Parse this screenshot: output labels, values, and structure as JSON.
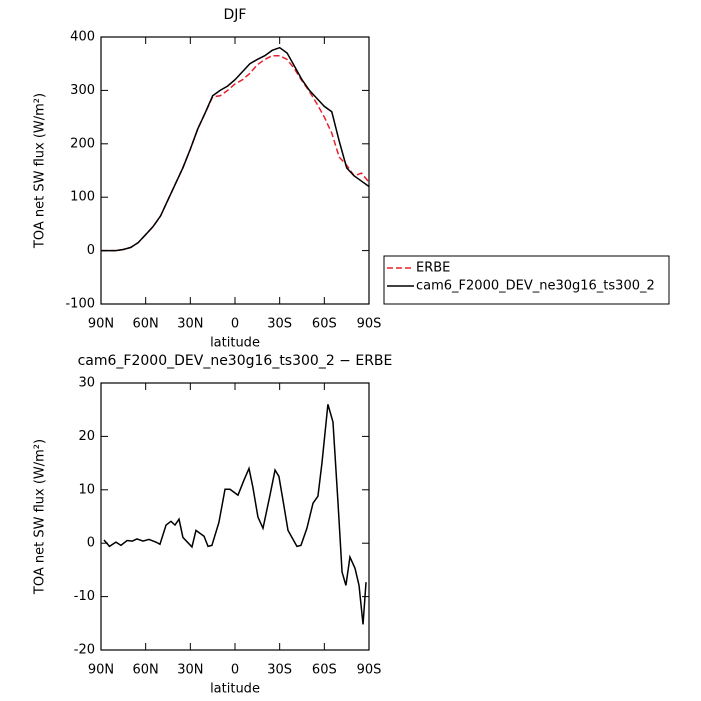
{
  "chart_data": [
    {
      "type": "line",
      "title": "DJF",
      "xlabel": "latitude",
      "ylabel": "TOA net SW flux (W/m²)",
      "x": [
        90,
        85,
        80,
        75,
        70,
        65,
        60,
        55,
        50,
        45,
        40,
        35,
        30,
        25,
        20,
        15,
        10,
        5,
        0,
        -5,
        -10,
        -15,
        -20,
        -25,
        -30,
        -35,
        -40,
        -45,
        -50,
        -55,
        -60,
        -65,
        -70,
        -75,
        -80,
        -85,
        -90
      ],
      "series": [
        {
          "name": "ERBE",
          "color": "#e8202a",
          "line_style": "dashed",
          "values": [
            0,
            0,
            0,
            2,
            6,
            15,
            30,
            45,
            65,
            95,
            125,
            155,
            190,
            228,
            258,
            288,
            290,
            300,
            312,
            320,
            332,
            348,
            358,
            365,
            365,
            358,
            340,
            318,
            298,
            275,
            250,
            220,
            175,
            160,
            140,
            145,
            128
          ]
        },
        {
          "name": "cam6_F2000_DEV_ne30g16_ts300_2",
          "color": "#000000",
          "line_style": "solid",
          "values": [
            0,
            0,
            0,
            2,
            6,
            15,
            30,
            45,
            65,
            95,
            125,
            155,
            190,
            228,
            258,
            290,
            300,
            308,
            320,
            335,
            350,
            358,
            365,
            375,
            380,
            370,
            345,
            320,
            300,
            285,
            270,
            260,
            205,
            155,
            140,
            130,
            120
          ]
        }
      ],
      "xlim": [
        90,
        -90
      ],
      "xticks": [
        {
          "value": 90,
          "label": "90N"
        },
        {
          "value": 60,
          "label": "60N"
        },
        {
          "value": 30,
          "label": "30N"
        },
        0,
        {
          "value": -30,
          "label": "30S"
        },
        {
          "value": -60,
          "label": "60S"
        },
        {
          "value": -90,
          "label": "90S"
        }
      ],
      "ylim": [
        -100,
        400
      ],
      "yticks": [
        -100,
        0,
        100,
        200,
        300,
        400
      ],
      "legend": "outside-right"
    },
    {
      "type": "line",
      "title": "cam6_F2000_DEV_ne30g16_ts300_2 − ERBE",
      "xlabel": "latitude",
      "ylabel": "TOA net SW flux (W/m²)",
      "x": [
        88,
        84.3,
        80,
        76.6,
        72.5,
        69,
        65.8,
        61.8,
        57.8,
        53,
        50.4,
        46.3,
        43,
        40.3,
        37.6,
        35,
        28.9,
        26.2,
        20.8,
        18.1,
        15.5,
        10.8,
        6.7,
        3.4,
        -2,
        -6,
        -9.4,
        -12,
        -15.4,
        -18.8,
        -23.5,
        -26.9,
        -29.5,
        -32.2,
        -35.6,
        -41.6,
        -44.3,
        -48.3,
        -52.4,
        -55.7,
        -58.4,
        -62.4,
        -65.8,
        -69.2,
        -71.9,
        -74.5,
        -77.2,
        -80.6,
        -83.3,
        -86,
        -88
      ],
      "values": [
        0.6,
        -0.6,
        0.2,
        -0.4,
        0.5,
        0.4,
        0.8,
        0.4,
        0.7,
        0.2,
        -0.2,
        3.4,
        4.1,
        3.4,
        4.5,
        1.1,
        -0.7,
        2.4,
        1.3,
        -0.6,
        -0.4,
        3.9,
        10.1,
        10.1,
        9,
        11.8,
        14,
        10.5,
        4.9,
        2.8,
        9,
        13.7,
        12.5,
        8.1,
        2.4,
        -0.6,
        -0.4,
        2.8,
        7.5,
        8.8,
        15,
        26,
        22.7,
        7.5,
        -5.4,
        -7.9,
        -2.6,
        -4.7,
        -7.9,
        -15.2,
        -7.3
      ],
      "color": "#000000",
      "xlim": [
        90,
        -90
      ],
      "xticks": [
        {
          "value": 90,
          "label": "90N"
        },
        {
          "value": 60,
          "label": "60N"
        },
        {
          "value": 30,
          "label": "30N"
        },
        0,
        {
          "value": -30,
          "label": "30S"
        },
        {
          "value": -60,
          "label": "60S"
        },
        {
          "value": -90,
          "label": "90S"
        }
      ],
      "ylim": [
        -20,
        30
      ],
      "yticks": [
        -20,
        -10,
        0,
        10,
        20,
        30
      ]
    }
  ]
}
